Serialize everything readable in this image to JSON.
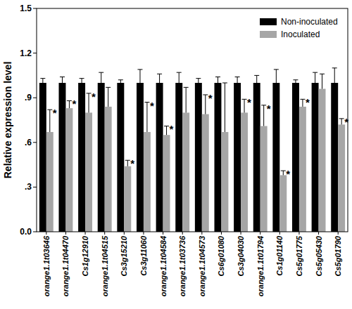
{
  "chart_data": {
    "type": "bar",
    "y_label": "Relative expression level",
    "categories": [
      "orange1.1t03646",
      "orange1.1t04470",
      "Cs1g12910",
      "orange1.1t04515",
      "Cs3g15210",
      "Cs3g11060",
      "orange1.1t04584",
      "orange1.1t03736",
      "orange1.1t04573",
      "Cs6g01080",
      "Cs3g04030",
      "orange1.1t01794",
      "Cs1g01140",
      "Cs5g01775",
      "Cs5g05430",
      "Cs5g01790"
    ],
    "series": [
      {
        "name": "Non-inoculated",
        "color": "#000000",
        "values": [
          1,
          1,
          1,
          1,
          1,
          1,
          1,
          1,
          1,
          1,
          1,
          1,
          1,
          1,
          1,
          1
        ],
        "errors": [
          0.03,
          0.04,
          0.03,
          0.07,
          0.02,
          0.09,
          0.06,
          0.07,
          0.03,
          0.04,
          0.04,
          0.05,
          0.09,
          0.02,
          0.07,
          0.1
        ]
      },
      {
        "name": "Inoculated",
        "color": "#a6a6a6",
        "values": [
          0.67,
          0.83,
          0.8,
          0.84,
          0.44,
          0.67,
          0.65,
          0.8,
          0.79,
          0.67,
          0.8,
          0.71,
          0.38,
          0.84,
          0.96,
          0.72
        ],
        "errors": [
          0.15,
          0.05,
          0.13,
          0.13,
          0.04,
          0.2,
          0.06,
          0.17,
          0.13,
          0.33,
          0.09,
          0.14,
          0.03,
          0.05,
          0.1,
          0.04
        ],
        "significance": [
          "*",
          "*",
          "*",
          null,
          "*",
          "*",
          "*",
          null,
          "*",
          null,
          "*",
          "*",
          "*",
          "*",
          null,
          "*"
        ]
      }
    ],
    "ylim": [
      0,
      1.5
    ],
    "yticks": [
      {
        "value": 0,
        "label": "0.0"
      },
      {
        "value": 0.3,
        "label": ".3"
      },
      {
        "value": 0.6,
        "label": ".6"
      },
      {
        "value": 0.9,
        "label": ".9"
      },
      1.2,
      1.5
    ],
    "legend": "upper right"
  }
}
